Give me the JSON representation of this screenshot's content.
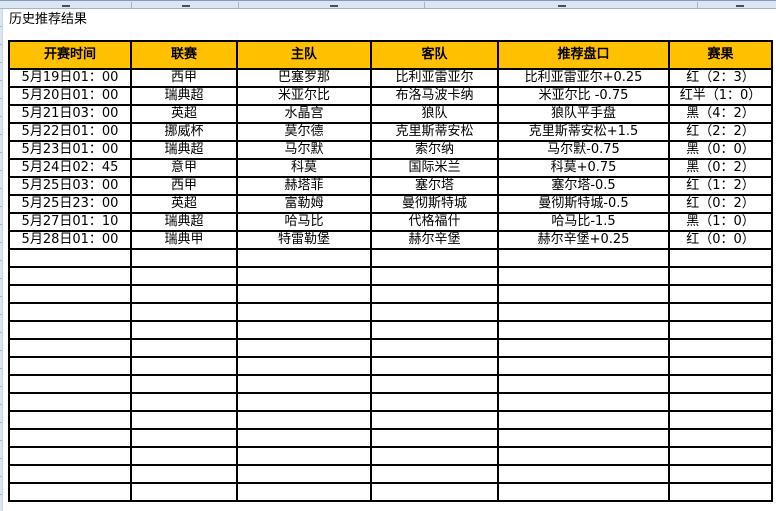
{
  "title": "历史推荐结果",
  "colors": {
    "header_bg": "#FFC000",
    "grid_line": "#000000",
    "result_red": "#FF0000",
    "result_black": "#000000",
    "result_navy": "#1F3864",
    "chrome_strip_bg": "#DCE6F1"
  },
  "table": {
    "headers": [
      "开赛时间",
      "联赛",
      "主队",
      "客队",
      "推荐盘口",
      "赛果"
    ],
    "rows": [
      {
        "time": "5月19日01：00",
        "league": "西甲",
        "home": "巴塞罗那",
        "away": "比利亚雷亚尔",
        "handicap": "比利亚雷亚尔+0.25",
        "result": "红（2：3）",
        "result_color": "red"
      },
      {
        "time": "5月20日01：00",
        "league": "瑞典超",
        "home": "米亚尔比",
        "away": "布洛马波卡纳",
        "handicap": "米亚尔比 -0.75",
        "result": "红半（1：0）",
        "result_color": "red"
      },
      {
        "time": "5月21日03：00",
        "league": "英超",
        "home": "水晶宫",
        "away": "狼队",
        "handicap": "狼队平手盘",
        "result": "黑（4：2）",
        "result_color": "black"
      },
      {
        "time": "5月22日01：00",
        "league": "挪威杯",
        "home": "莫尔德",
        "away": "克里斯蒂安松",
        "handicap": "克里斯蒂安松+1.5",
        "result": "红（2：2）",
        "result_color": "red"
      },
      {
        "time": "5月23日01：00",
        "league": "瑞典超",
        "home": "马尔默",
        "away": "索尔纳",
        "handicap": "马尔默-0.75",
        "result": "黑（0：0）",
        "result_color": "black"
      },
      {
        "time": "5月24日02：45",
        "league": "意甲",
        "home": "科莫",
        "away": "国际米兰",
        "handicap": "科莫+0.75",
        "result": "黑（0：2）",
        "result_color": "black"
      },
      {
        "time": "5月25日03：00",
        "league": "西甲",
        "home": "赫塔菲",
        "away": "塞尔塔",
        "handicap": "塞尔塔-0.5",
        "result": "红（1：2）",
        "result_color": "red"
      },
      {
        "time": "5月25日23：00",
        "league": "英超",
        "home": "富勒姆",
        "away": "曼彻斯特城",
        "handicap": "曼彻斯特城-0.5",
        "result": "红（0：2）",
        "result_color": "red"
      },
      {
        "time": "5月27日01：10",
        "league": "瑞典超",
        "home": "哈马比",
        "away": "代格福什",
        "handicap": "哈马比-1.5",
        "result": "黑（1：0）",
        "result_color": "navy"
      },
      {
        "time": "5月28日01：00",
        "league": "瑞典甲",
        "home": "特雷勒堡",
        "away": "赫尔辛堡",
        "handicap": "赫尔辛堡+0.25",
        "result": "红（0：0）",
        "result_color": "red"
      }
    ],
    "empty_rows": 14
  }
}
